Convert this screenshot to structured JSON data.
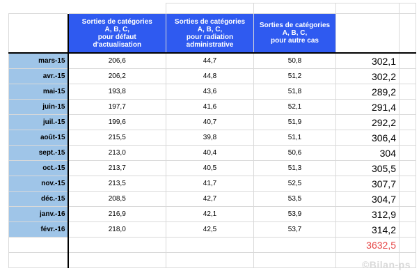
{
  "headers": [
    "Sorties de catégories\nA, B, C,\npour défaut\nd'actualisation",
    "Sorties de catégories\nA, B, C,\npour radiation\nadministrative",
    "Sorties de catégories\nA, B, C,\npour autre cas"
  ],
  "rows": [
    {
      "month": "mars-15",
      "a": "206,6",
      "b": "44,7",
      "c": "50,8",
      "total": "302,1"
    },
    {
      "month": "avr.-15",
      "a": "206,2",
      "b": "44,8",
      "c": "51,2",
      "total": "302,2"
    },
    {
      "month": "mai-15",
      "a": "193,8",
      "b": "43,6",
      "c": "51,8",
      "total": "289,2"
    },
    {
      "month": "juin-15",
      "a": "197,7",
      "b": "41,6",
      "c": "52,1",
      "total": "291,4"
    },
    {
      "month": "juil.-15",
      "a": "199,6",
      "b": "40,7",
      "c": "51,9",
      "total": "292,2"
    },
    {
      "month": "août-15",
      "a": "215,5",
      "b": "39,8",
      "c": "51,1",
      "total": "306,4"
    },
    {
      "month": "sept.-15",
      "a": "213,0",
      "b": "40,4",
      "c": "50,6",
      "total": "304"
    },
    {
      "month": "oct.-15",
      "a": "213,7",
      "b": "40,5",
      "c": "51,3",
      "total": "305,5"
    },
    {
      "month": "nov.-15",
      "a": "213,5",
      "b": "41,7",
      "c": "52,5",
      "total": "307,7"
    },
    {
      "month": "déc.-15",
      "a": "208,5",
      "b": "42,7",
      "c": "53,5",
      "total": "304,7"
    },
    {
      "month": "janv.-16",
      "a": "216,9",
      "b": "42,1",
      "c": "53,9",
      "total": "312,9"
    },
    {
      "month": "févr.-16",
      "a": "218,0",
      "b": "42,5",
      "c": "53,7",
      "total": "314,2"
    }
  ],
  "grand_total": "3632,5",
  "watermark": "©Bilan-ps",
  "colors": {
    "header_bg": "#2f5af0",
    "month_bg": "#9fc5e8",
    "grand_total": "#e64545"
  }
}
